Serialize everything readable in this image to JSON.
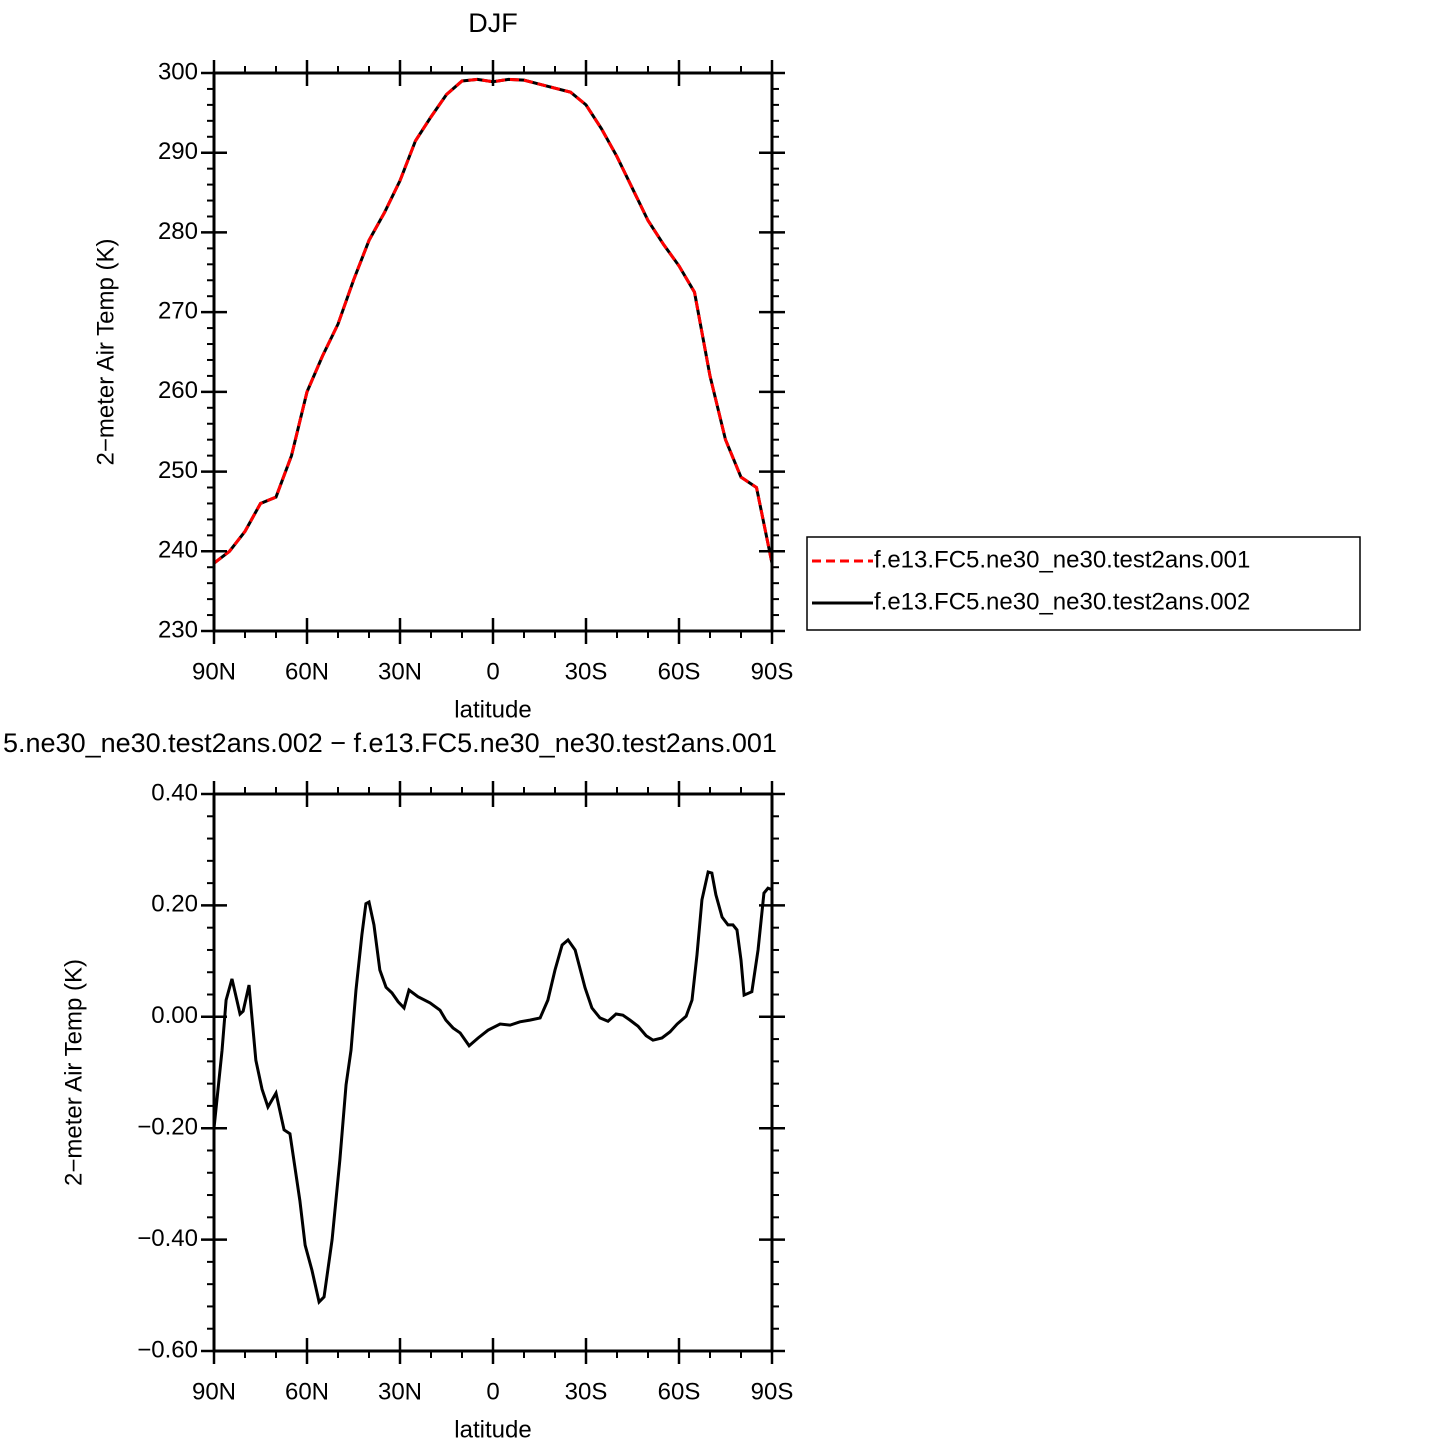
{
  "chart_data": [
    {
      "type": "line",
      "title": "DJF",
      "xlabel": "latitude",
      "ylabel": "2−meter Air Temp (K)",
      "x": [
        90,
        85,
        80,
        75,
        70,
        65,
        60,
        55,
        50,
        45,
        40,
        35,
        30,
        25,
        20,
        15,
        10,
        5,
        0,
        -5,
        -10,
        -15,
        -20,
        -25,
        -30,
        -35,
        -40,
        -45,
        -50,
        -55,
        -60,
        -65,
        -70,
        -75,
        -80,
        -85,
        -90
      ],
      "series": [
        {
          "name": "f.e13.FC5.ne30_ne30.test2ans.001",
          "color": "#ff0000",
          "linestyle": "dashed",
          "values": [
            238.5,
            240,
            242.5,
            246,
            246.8,
            252,
            260,
            264.5,
            268.5,
            274,
            279,
            282.5,
            286.5,
            291.5,
            294.5,
            297.3,
            299,
            299.2,
            298.9,
            299.2,
            299.1,
            298.6,
            298.1,
            297.6,
            296,
            293,
            289.5,
            285.5,
            281.5,
            278.5,
            275.8,
            272.5,
            262,
            254,
            249.3,
            248,
            238.5
          ]
        },
        {
          "name": "f.e13.FC5.ne30_ne30.test2ans.002",
          "color": "#000000",
          "linestyle": "solid",
          "values": [
            238.5,
            240,
            242.5,
            246,
            246.8,
            252,
            260,
            264.5,
            268.5,
            274,
            279,
            282.5,
            286.5,
            291.5,
            294.5,
            297.3,
            299,
            299.2,
            298.9,
            299.2,
            299.1,
            298.6,
            298.1,
            297.6,
            296,
            293,
            289.5,
            285.5,
            281.5,
            278.5,
            275.8,
            272.5,
            262,
            254,
            249.3,
            248,
            238.5
          ]
        }
      ],
      "xlim": [
        90,
        -90
      ],
      "xticks": [
        {
          "value": 90,
          "label": "90N"
        },
        {
          "value": 60,
          "label": "60N"
        },
        {
          "value": 30,
          "label": "30N"
        },
        0,
        {
          "value": -30,
          "label": "30S"
        },
        {
          "value": -60,
          "label": "60S"
        },
        {
          "value": -90,
          "label": "90S"
        }
      ],
      "xminorticks": [
        80,
        70,
        50,
        40,
        20,
        10,
        -10,
        -20,
        -40,
        -50,
        -70,
        -80
      ],
      "ylim": [
        230,
        300
      ],
      "yticks": [
        230,
        240,
        250,
        260,
        270,
        280,
        290,
        300
      ],
      "yminorticks": [
        232,
        234,
        236,
        238,
        242,
        244,
        246,
        248,
        252,
        254,
        256,
        258,
        262,
        264,
        266,
        268,
        272,
        274,
        276,
        278,
        282,
        284,
        286,
        288,
        292,
        294,
        296,
        298
      ],
      "legend": "right"
    },
    {
      "type": "line",
      "title": "5.ne30_ne30.test2ans.002 − f.e13.FC5.ne30_ne30.test2ans.001",
      "xlabel": "latitude",
      "ylabel": "2−meter Air Temp (K)",
      "x": [
        90,
        87.4,
        86.1,
        84.2,
        81.6,
        80.6,
        78.7,
        76.5,
        74.5,
        72.6,
        70,
        67.4,
        65.5,
        62.3,
        60.6,
        58.4,
        56.1,
        54.5,
        51.9,
        49.4,
        47.4,
        45.8,
        44.2,
        42.3,
        41,
        40,
        38.4,
        36.5,
        34.5,
        32.6,
        30.6,
        28.7,
        27.1,
        24.2,
        20.3,
        17.1,
        15.2,
        12.9,
        10.6,
        7.7,
        4.8,
        1.6,
        -2.3,
        -5.5,
        -8.7,
        -11.9,
        -15.2,
        -17.7,
        -20,
        -22.3,
        -24.2,
        -26.5,
        -29.7,
        -31.9,
        -34.5,
        -37.1,
        -39.7,
        -41.9,
        -44.2,
        -46.8,
        -49.4,
        -51.6,
        -54.5,
        -57.1,
        -59.4,
        -62.3,
        -64.2,
        -65.8,
        -67.4,
        -69.4,
        -70.6,
        -71.9,
        -73.9,
        -75.8,
        -77.4,
        -78.7,
        -80,
        -81,
        -83.5,
        -85.5,
        -87.4,
        -88.7,
        -90
      ],
      "series": [
        {
          "color": "#000000",
          "linestyle": "solid",
          "values": [
            -0.2,
            -0.06,
            0.03,
            0.068,
            0.005,
            0.01,
            0.057,
            -0.078,
            -0.13,
            -0.162,
            -0.137,
            -0.203,
            -0.21,
            -0.33,
            -0.41,
            -0.455,
            -0.512,
            -0.503,
            -0.4,
            -0.257,
            -0.122,
            -0.06,
            0.048,
            0.147,
            0.203,
            0.206,
            0.165,
            0.084,
            0.053,
            0.043,
            0.027,
            0.016,
            0.048,
            0.036,
            0.025,
            0.012,
            -0.006,
            -0.02,
            -0.029,
            -0.052,
            -0.038,
            -0.024,
            -0.013,
            -0.015,
            -0.009,
            -0.006,
            -0.002,
            0.03,
            0.084,
            0.129,
            0.138,
            0.12,
            0.052,
            0.016,
            -0.002,
            -0.008,
            0.005,
            0.003,
            -0.006,
            -0.017,
            -0.034,
            -0.042,
            -0.038,
            -0.027,
            -0.013,
            0.001,
            0.03,
            0.111,
            0.21,
            0.26,
            0.258,
            0.219,
            0.179,
            0.165,
            0.165,
            0.156,
            0.102,
            0.039,
            0.045,
            0.12,
            0.222,
            0.231,
            0.228
          ]
        }
      ],
      "xlim": [
        90,
        -90
      ],
      "xticks": [
        {
          "value": 90,
          "label": "90N"
        },
        {
          "value": 60,
          "label": "60N"
        },
        {
          "value": 30,
          "label": "30N"
        },
        0,
        {
          "value": -30,
          "label": "30S"
        },
        {
          "value": -60,
          "label": "60S"
        },
        {
          "value": -90,
          "label": "90S"
        }
      ],
      "xminorticks": [
        80,
        70,
        50,
        40,
        20,
        10,
        -10,
        -20,
        -40,
        -50,
        -70,
        -80
      ],
      "ylim": [
        -0.6,
        0.4
      ],
      "yticks": [
        {
          "value": -0.6,
          "label": "−0.60"
        },
        {
          "value": -0.4,
          "label": "−0.40"
        },
        {
          "value": -0.2,
          "label": "−0.20"
        },
        {
          "value": 0,
          "label": "0.00"
        },
        {
          "value": 0.2,
          "label": "0.20"
        },
        {
          "value": 0.4,
          "label": "0.40"
        }
      ],
      "yminorticks": [
        -0.56,
        -0.52,
        -0.48,
        -0.44,
        -0.36,
        -0.32,
        -0.28,
        -0.24,
        -0.16,
        -0.12,
        -0.08,
        -0.04,
        0.04,
        0.08,
        0.12,
        0.16,
        0.24,
        0.28,
        0.32,
        0.36
      ]
    }
  ]
}
